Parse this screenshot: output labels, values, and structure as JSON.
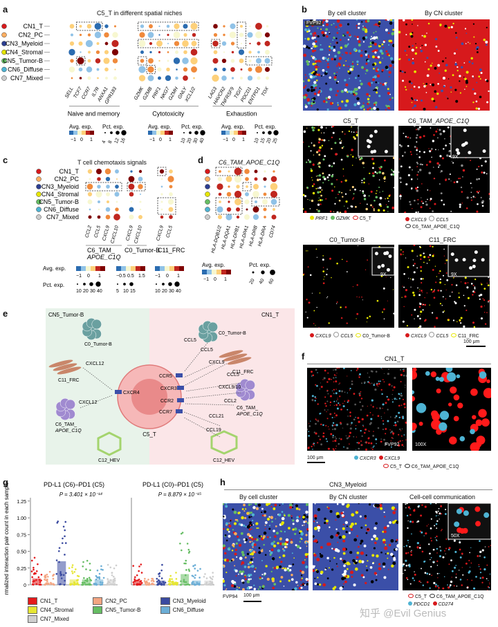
{
  "panel_a": {
    "label": "a",
    "title": "C5_T in different spatial niches",
    "rows": [
      {
        "name": "CN1_T",
        "color": "#d7191c"
      },
      {
        "name": "CN2_PC",
        "color": "#fdae61"
      },
      {
        "name": "CN3_Myeloid",
        "color": "#2c3e91"
      },
      {
        "name": "CN4_Stromal",
        "color": "#e6e600"
      },
      {
        "name": "CN5_Tumor-B",
        "color": "#66bd63"
      },
      {
        "name": "CN6_Diffuse",
        "color": "#4eb3d3"
      },
      {
        "name": "CN7_Mixed",
        "color": "#cccccc"
      }
    ],
    "genes_naive": [
      "SELL",
      "TCF7",
      "CCR7",
      "IL7R",
      "ANXA1",
      "GPR183"
    ],
    "genes_cyto": [
      "GZMK",
      "GZMB",
      "PRF1",
      "NKG7",
      "GZMH",
      "GNLY",
      "XCL1/2"
    ],
    "genes_exh": [
      "LAG3",
      "HAVCR2",
      "TNFRSF9",
      "TIGIT",
      "PDCD1",
      "ENTPD1",
      "TOX"
    ],
    "groups": [
      "Naive and memory",
      "Cytotoxicity",
      "Exhaustion"
    ],
    "legend": {
      "avg_title": "Avg. exp.",
      "avg_ticks": [
        "−1",
        "0",
        "1"
      ],
      "pct_title": "Pct. exp.",
      "pct_a1": [
        "4",
        "8",
        "12",
        "16"
      ],
      "pct_a2": [
        "10",
        "20",
        "30",
        "40"
      ],
      "pct_a3": [
        "10",
        "15",
        "20",
        "25"
      ]
    }
  },
  "panel_b": {
    "label": "b",
    "col1": "By cell cluster",
    "col2": "By CN cluster",
    "fvp": "FVP92",
    "c5t": "C5_T",
    "c6": "C6_TAM_",
    "c6_it": "APOE_C1Q",
    "c0": "C0_Tumor-B",
    "c11": "C11_FRC",
    "zoom": "9X",
    "leg1": [
      "PRF1",
      "GZMK",
      "C5_T"
    ],
    "leg2": [
      "CXCL9",
      "CCL5",
      "C6_TAM_APOE_C1Q"
    ],
    "leg3": [
      "CXCL9",
      "CCL5",
      "C0_Tumor-B"
    ],
    "leg4": [
      "CXCL9",
      "CCL5",
      "C11_FRC"
    ],
    "scale": "100 μm"
  },
  "panel_c": {
    "label": "c",
    "title": "T cell chemotaxis signals",
    "genes": [
      "CCL2",
      "CCL5",
      "CXCL9",
      "CXCL10",
      "CXCL9",
      "CXCL10",
      "CXCL9",
      "CCL5"
    ],
    "groups": [
      "C6_TAM_",
      "APOE_C1Q",
      "C0_Tumor-B",
      "C11_FRC"
    ],
    "avg_title": "Avg. exp.",
    "pct_title": "Pct. exp.",
    "ticks1": [
      "−1",
      "0",
      "1"
    ],
    "ticks2": [
      "−0.5",
      "0.5",
      "1.5"
    ],
    "ticks3": [
      "−1",
      "0",
      "1"
    ],
    "pct1": [
      "10",
      "20",
      "30",
      "40"
    ],
    "pct2": [
      "5",
      "10",
      "15"
    ],
    "pct3": [
      "10",
      "20",
      "30",
      "40"
    ]
  },
  "panel_d": {
    "label": "d",
    "title": "C6_TAM_APOE_C1Q",
    "genes": [
      "HLA-DQB1/2",
      "HLA-DQA1",
      "HLA-DPB1",
      "HLA-DPA1",
      "HLA-DRB",
      "HLA-DRA",
      "CD74"
    ],
    "avg_title": "Avg. exp.",
    "avg_ticks": [
      "−1",
      "0",
      "1"
    ],
    "pct_title": "Pct. exp.",
    "pct_ticks": [
      "20",
      "40",
      "60"
    ]
  },
  "panel_e": {
    "label": "e",
    "left_title": "CN5_Tumor-B",
    "right_title": "CN1_T",
    "c0_left": "C0_Tumor-B",
    "c11_left": "C11_FRC",
    "c6_left": "C6_TAM_",
    "c6_left_it": "APOE_C1Q",
    "c12_left": "C12_HEV",
    "c0_right": "C0_Tumor-B",
    "c11_right": "C11_FRC",
    "c6_right": "C6_TAM_",
    "c6_right_it": "APOE_C1Q",
    "c12_right": "C12_HEV",
    "t_cell": "C5_T",
    "receptors": [
      "CXCR4",
      "CCR5",
      "CXCR3",
      "CCR2",
      "CCR7"
    ],
    "ligands": [
      "CXCL12",
      "CXCL12",
      "CCL5",
      "CCL5",
      "CXCL9",
      "CCL5",
      "CXCL9/10",
      "CCL2",
      "CCL21",
      "CCL19"
    ]
  },
  "panel_f": {
    "label": "f",
    "title": "CN1_T",
    "fvp": "FVP92",
    "zoom": "100X",
    "scale": "100 μm",
    "leg": [
      "CXCR3",
      "CXCL9",
      "C5_T",
      "C6_TAM_APOE_C1Q"
    ]
  },
  "panel_g": {
    "label": "g",
    "ylabel": "Normalized interaction pair count in each sample",
    "plot1_title": "PD-L1 (C6)–PD1 (C5)",
    "plot2_title": "PD-L1 (C0)–PD1 (C5)",
    "p1": "P = 3.401 × 10⁻¹⁴",
    "p2": "P = 8.879 × 10⁻¹⁵",
    "yticks": [
      "0",
      "0.25",
      "0.50",
      "0.75",
      "1.00",
      "1.25"
    ],
    "legend": [
      {
        "name": "CN1_T",
        "color": "#e41a1c"
      },
      {
        "name": "CN2_PC",
        "color": "#f4a582"
      },
      {
        "name": "CN3_Myeloid",
        "color": "#3a4aa0"
      },
      {
        "name": "CN4_Stromal",
        "color": "#e6e633"
      },
      {
        "name": "CN5_Tumor-B",
        "color": "#66bd63"
      },
      {
        "name": "CN6_Diffuse",
        "color": "#6baed6"
      },
      {
        "name": "CN7_Mixed",
        "color": "#cfcfcf"
      }
    ]
  },
  "panel_h": {
    "label": "h",
    "title": "CN3_Myeloid",
    "col1": "By cell cluster",
    "col2": "By CN cluster",
    "col3": "Cell-cell communication",
    "fvp": "FVP94",
    "scale": "100 μm",
    "zoom": "50X",
    "leg": [
      "C5_T",
      "C6_TAM_APOE_C1Q",
      "PDCD1",
      "CD274"
    ]
  },
  "watermark": "知乎 @Evil Genius",
  "colors": {
    "red": "#d7191c",
    "dark_red": "#8b0000",
    "orange": "#fdae61",
    "blue": "#2c3e91",
    "yellow": "#e6e600",
    "green": "#66bd63",
    "cyan": "#4eb3d3",
    "grey": "#cccccc"
  }
}
